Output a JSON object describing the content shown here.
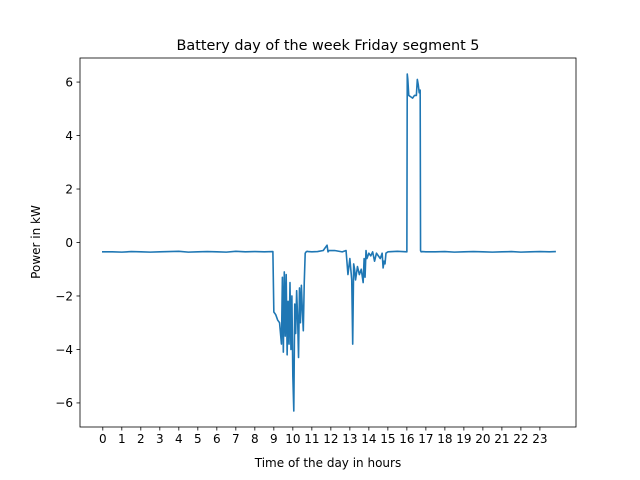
{
  "chart_data": {
    "type": "line",
    "title": "Battery day of the week Friday segment 5",
    "xlabel": "Time of the day in hours",
    "ylabel": "Power in kW",
    "xlim": [
      -1.2,
      24.9
    ],
    "ylim": [
      -6.9,
      6.9
    ],
    "x_ticks": [
      0,
      1,
      2,
      3,
      4,
      5,
      6,
      7,
      8,
      9,
      10,
      11,
      12,
      13,
      14,
      15,
      16,
      17,
      18,
      19,
      20,
      21,
      22,
      23
    ],
    "x_tick_labels": [
      "0",
      "1",
      "2",
      "3",
      "4",
      "5",
      "6",
      "7",
      "8",
      "9",
      "10",
      "11",
      "12",
      "13",
      "14",
      "15",
      "16",
      "17",
      "18",
      "19",
      "20",
      "21",
      "22",
      "23"
    ],
    "y_ticks": [
      -6,
      -4,
      -2,
      0,
      2,
      4,
      6
    ],
    "y_tick_labels": [
      "−6",
      "−4",
      "−2",
      "0",
      "2",
      "4",
      "6"
    ],
    "grid": false,
    "series_color": "#1f77b4",
    "series": [
      {
        "x": [
          0,
          0.5,
          1,
          1.5,
          2,
          2.5,
          3,
          3.5,
          4,
          4.5,
          5,
          5.5,
          6,
          6.5,
          7,
          7.5,
          8,
          8.5,
          8.95,
          9.0,
          9.1,
          9.2,
          9.3,
          9.4,
          9.45,
          9.5,
          9.55,
          9.6,
          9.65,
          9.7,
          9.75,
          9.8,
          9.85,
          9.9,
          9.95,
          10.0,
          10.05,
          10.1,
          10.15,
          10.2,
          10.25,
          10.3,
          10.35,
          10.4,
          10.45,
          10.5,
          10.55,
          10.6,
          10.65,
          10.7,
          10.75,
          10.8,
          11.0,
          11.3,
          11.6,
          11.8,
          11.85,
          11.9,
          12.2,
          12.6,
          12.8,
          12.9,
          13.0,
          13.1,
          13.15,
          13.2,
          13.25,
          13.3,
          13.4,
          13.5,
          13.6,
          13.7,
          13.75,
          13.8,
          13.85,
          13.9,
          14.0,
          14.1,
          14.2,
          14.3,
          14.4,
          14.5,
          14.6,
          14.7,
          14.75,
          14.8,
          14.85,
          14.9,
          15.0,
          15.5,
          16.0,
          16.02,
          16.05,
          16.1,
          16.2,
          16.3,
          16.4,
          16.5,
          16.55,
          16.6,
          16.65,
          16.7,
          16.72,
          16.75,
          16.8,
          17,
          17.5,
          18,
          18.5,
          19,
          19.5,
          20,
          20.5,
          21,
          21.5,
          22,
          22.5,
          23,
          23.5,
          23.8
        ],
        "y": [
          -0.35,
          -0.35,
          -0.36,
          -0.34,
          -0.35,
          -0.36,
          -0.35,
          -0.34,
          -0.33,
          -0.36,
          -0.35,
          -0.34,
          -0.35,
          -0.36,
          -0.33,
          -0.35,
          -0.34,
          -0.35,
          -0.34,
          -2.6,
          -2.7,
          -2.9,
          -3.0,
          -3.8,
          -1.3,
          -4.1,
          -1.1,
          -3.5,
          -1.2,
          -4.2,
          -2.2,
          -3.8,
          -1.5,
          -4.0,
          -2.0,
          -5.0,
          -6.3,
          -2.3,
          -3.4,
          -1.8,
          -2.8,
          -4.3,
          -1.7,
          -3.0,
          -1.6,
          -2.5,
          -3.3,
          -1.5,
          -0.4,
          -0.35,
          -0.33,
          -0.34,
          -0.35,
          -0.34,
          -0.3,
          -0.1,
          -0.35,
          -0.3,
          -0.3,
          -0.35,
          -0.3,
          -1.2,
          -0.6,
          -1.4,
          -3.8,
          -0.8,
          -1.0,
          -1.4,
          -0.9,
          -1.2,
          -1.0,
          -1.5,
          -0.6,
          -1.3,
          -0.3,
          -0.6,
          -0.4,
          -0.5,
          -0.35,
          -0.7,
          -0.4,
          -0.5,
          -0.6,
          -0.4,
          -0.95,
          -0.7,
          -0.8,
          -0.4,
          -0.35,
          -0.33,
          -0.35,
          6.3,
          6.1,
          5.5,
          5.45,
          5.4,
          5.5,
          5.5,
          6.1,
          5.9,
          5.6,
          5.7,
          -0.3,
          -0.35,
          -0.34,
          -0.35,
          -0.35,
          -0.34,
          -0.36,
          -0.35,
          -0.34,
          -0.35,
          -0.36,
          -0.35,
          -0.34,
          -0.36,
          -0.35,
          -0.34,
          -0.35,
          -0.34
        ]
      }
    ]
  }
}
